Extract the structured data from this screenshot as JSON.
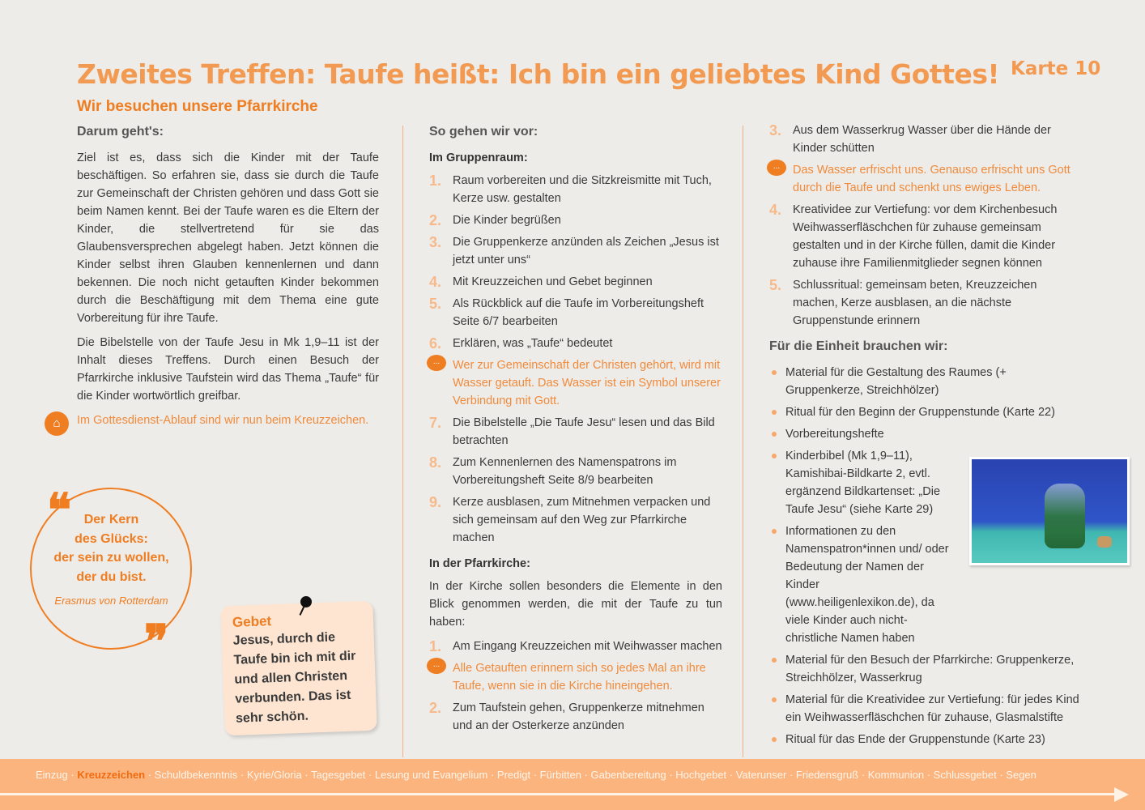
{
  "header": {
    "title": "Zweites Treffen: Taufe heißt: Ich bin ein geliebtes Kind Gottes!",
    "card": "Karte 10",
    "subtitle": "Wir besuchen unsere Pfarrkirche"
  },
  "left": {
    "heading": "Darum geht's:",
    "p1": "Ziel ist es, dass sich die Kinder mit der Taufe beschäftigen. So erfahren sie, dass sie durch die Taufe zur Gemeinschaft der Christen gehören und dass Gott sie beim Namen kennt. Bei der Taufe waren es die Eltern der Kinder, die stellvertretend für sie das Glaubensversprechen abgelegt haben. Jetzt können die Kinder selbst ihren Glauben kennenlernen und dann bekennen. Die noch nicht getauften Kinder bekommen durch die Beschäftigung mit dem Thema eine gute Vorbereitung für ihre Taufe.",
    "p2": "Die Bibelstelle von der Taufe Jesu in Mk 1,9–11 ist der Inhalt dieses Treffens. Durch einen Besuch der Pfarrkirche inklusive Taufstein wird das Thema „Taufe“ für die Kinder wortwörtlich greifbar.",
    "note": "Im Gottesdienst-Ablauf sind wir nun beim Kreuzzeichen."
  },
  "quote": {
    "lines": [
      "Der Kern",
      "des Glücks:",
      "der sein zu wollen,",
      "der du bist."
    ],
    "author": "Erasmus von Rotterdam"
  },
  "prayer": {
    "title": "Gebet",
    "text": "Jesus, durch die Taufe bin ich mit dir und allen Christen verbunden. Das ist sehr schön."
  },
  "middle": {
    "heading": "So gehen wir vor:",
    "sub1": "Im Gruppenraum:",
    "steps1": [
      {
        "n": "1.",
        "t": "Raum vorbereiten und die Sitzkreismitte mit Tuch, Kerze usw. gestalten"
      },
      {
        "n": "2.",
        "t": "Die Kinder begrüßen"
      },
      {
        "n": "3.",
        "t": "Die Gruppenkerze anzünden als Zeichen „Jesus ist jetzt unter uns“"
      },
      {
        "n": "4.",
        "t": "Mit Kreuzzeichen und Gebet beginnen"
      },
      {
        "n": "5.",
        "t": "Als Rückblick auf die Taufe im Vorbereitungsheft Seite 6/7 bearbeiten"
      },
      {
        "n": "6.",
        "t": "Erklären, was „Taufe“ bedeutet"
      },
      {
        "n": "...",
        "t": "Wer zur Gemeinschaft der Christen gehört, wird mit Wasser getauft. Das Wasser ist ein Symbol unserer Verbindung mit Gott.",
        "speech": true
      },
      {
        "n": "7.",
        "t": "Die Bibelstelle „Die Taufe Jesu“ lesen und das Bild betrachten"
      },
      {
        "n": "8.",
        "t": "Zum Kennenlernen des Namenspatrons im Vorbereitungsheft Seite 8/9 bearbeiten"
      },
      {
        "n": "9.",
        "t": "Kerze ausblasen, zum Mitnehmen verpacken und sich gemeinsam auf den Weg zur Pfarrkirche machen"
      }
    ],
    "sub2": "In der Pfarrkirche:",
    "intro2": "In der Kirche sollen besonders die Elemente in den Blick genommen werden, die mit der Taufe zu tun haben:",
    "steps2": [
      {
        "n": "1.",
        "t": "Am Eingang Kreuzzeichen mit Weihwasser machen"
      },
      {
        "n": "...",
        "t": "Alle Getauften erinnern sich so jedes Mal an ihre Taufe, wenn sie in die Kirche hineingehen.",
        "speech": true
      },
      {
        "n": "2.",
        "t": "Zum Taufstein gehen, Gruppenkerze mitnehmen und an der Osterkerze anzünden"
      }
    ]
  },
  "right": {
    "steps": [
      {
        "n": "3.",
        "t": "Aus dem Wasserkrug Wasser über die Hände der Kinder schütten"
      },
      {
        "n": "...",
        "t": "Das Wasser erfrischt uns. Genauso erfrischt uns Gott durch die Taufe und schenkt uns ewiges Leben.",
        "speech": true
      },
      {
        "n": "4.",
        "t": "Kreatividee zur Vertiefung: vor dem Kirchenbesuch Weihwasserfläschchen für zuhause gemeinsam gestalten und in der Kirche füllen, damit die Kinder zuhause ihre Familienmitglieder segnen können"
      },
      {
        "n": "5.",
        "t": "Schlussritual: gemeinsam beten, Kreuzzeichen machen, Kerze ausblasen, an die nächste Gruppenstunde erinnern"
      }
    ],
    "heading": "Für die Einheit brauchen wir:",
    "materials": [
      "Material für die Gestaltung des Raumes (+ Gruppenkerze, Streichhölzer)",
      "Ritual für den Beginn der Gruppenstunde (Karte 22)",
      "Vorbereitungshefte",
      "Kinderbibel (Mk 1,9–11), Kamishibai-Bildkarte 2, evtl. ergänzend Bildkartenset: „Die Taufe Jesu“ (siehe Karte 29)",
      "Informationen zu den Namenspatron*innen und/ oder Bedeutung der Namen der Kinder (www.heiligenlexikon.de), da viele Kinder auch nicht-christliche Namen haben",
      "Material für den Besuch der Pfarrkirche: Gruppenkerze, Streichhölzer, Wasserkrug",
      "Material für die Kreatividee zur Vertiefung: für jedes Kind ein Weihwasserfläschchen für zuhause, Glasmalstifte",
      "Ritual für das Ende der Gruppenstunde (Karte 23)"
    ]
  },
  "footer": {
    "before": "Einzug · ",
    "current": "Kreuzzeichen",
    "after": " · Schuldbekenntnis · Kyrie/Gloria · Tagesgebet · Lesung und Evangelium · Predigt · Fürbitten · Gabenbereitung · Hochgebet · Vaterunser · Friedensgruß · Kommunion · Schlussgebet · Segen"
  },
  "colors": {
    "accent": "#ef7d22",
    "light_accent": "#f39a52",
    "footer": "#fcb47e",
    "background": "#eeece8"
  }
}
